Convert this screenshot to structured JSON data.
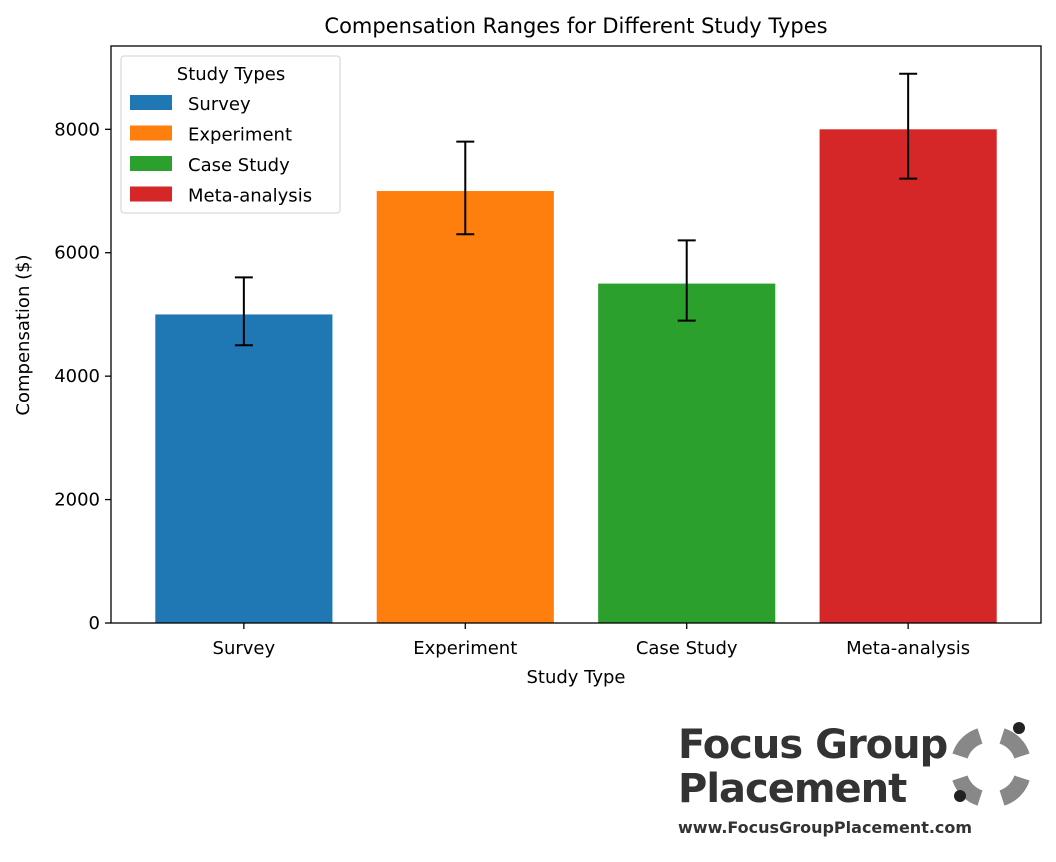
{
  "chart_data": {
    "type": "bar",
    "title": "Compensation Ranges for Different Study Types",
    "xlabel": "Study Type",
    "ylabel": "Compensation ($)",
    "categories": [
      "Survey",
      "Experiment",
      "Case Study",
      "Meta-analysis"
    ],
    "values": [
      5000,
      7000,
      5500,
      8000
    ],
    "error_low": [
      4500,
      6300,
      4900,
      7200
    ],
    "error_high": [
      5600,
      7800,
      6200,
      8900
    ],
    "colors": [
      "#1f77b4",
      "#ff7f0e",
      "#2ca02c",
      "#d62728"
    ],
    "ylim": [
      0,
      9350
    ],
    "yticks": [
      0,
      2000,
      4000,
      6000,
      8000
    ],
    "grid": false,
    "legend": {
      "title": "Study Types",
      "placement": "top-left",
      "entries": [
        "Survey",
        "Experiment",
        "Case Study",
        "Meta-analysis"
      ]
    }
  },
  "brand": {
    "line1": "Focus Group",
    "line2": "Placement",
    "url": "www.FocusGroupPlacement.com",
    "logo_icon": "ring-logo-icon",
    "color": "#333333",
    "logo_color": "#888888"
  }
}
